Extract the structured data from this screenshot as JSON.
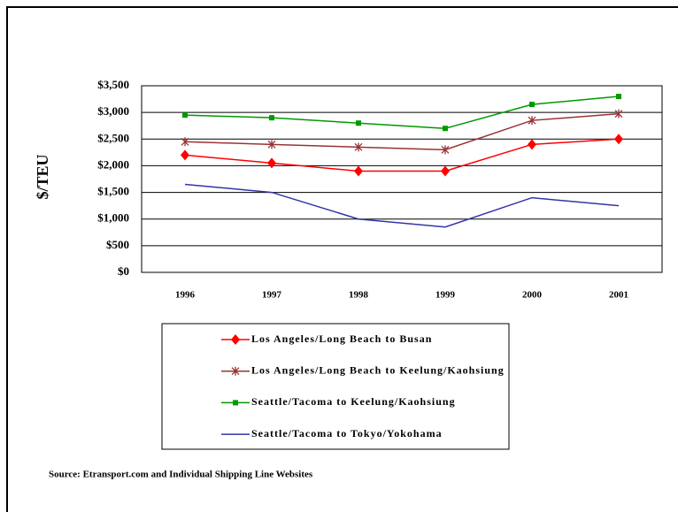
{
  "chart_data": {
    "type": "line",
    "y_label": "$/TEU",
    "source": "Source: Etransport.com and Individual Shipping Line Websites",
    "categories": [
      "1996",
      "1997",
      "1998",
      "1999",
      "2000",
      "2001"
    ],
    "ylim": [
      0,
      3500
    ],
    "yticks": [
      {
        "value": 0,
        "label": "$0"
      },
      {
        "value": 500,
        "label": "$500"
      },
      {
        "value": 1000,
        "label": "$1,000"
      },
      {
        "value": 1500,
        "label": "$1,500"
      },
      {
        "value": 2000,
        "label": "$2,000"
      },
      {
        "value": 2500,
        "label": "$2,500"
      },
      {
        "value": 3000,
        "label": "$3,000"
      },
      {
        "value": 3500,
        "label": "$3,500"
      }
    ],
    "grid": true,
    "legend": "bottom",
    "series": [
      {
        "name": "Los Angeles/Long Beach to Busan",
        "color": "#ff0000",
        "marker": "diamond",
        "values": [
          2200,
          2050,
          1900,
          1900,
          2400,
          2500
        ]
      },
      {
        "name": "Los Angeles/Long Beach to Keelung/Kaohsiung",
        "color": "#993333",
        "marker": "star",
        "values": [
          2450,
          2400,
          2350,
          2300,
          2850,
          2975
        ]
      },
      {
        "name": "Seattle/Tacoma to Keelung/Kaohsiung",
        "color": "#009900",
        "marker": "square",
        "values": [
          2950,
          2900,
          2800,
          2700,
          3150,
          3300
        ]
      },
      {
        "name": "Seattle/Tacoma to Tokyo/Yokohama",
        "color": "#3333aa",
        "marker": "none",
        "values": [
          1650,
          1500,
          1000,
          850,
          1400,
          1250
        ]
      }
    ]
  }
}
